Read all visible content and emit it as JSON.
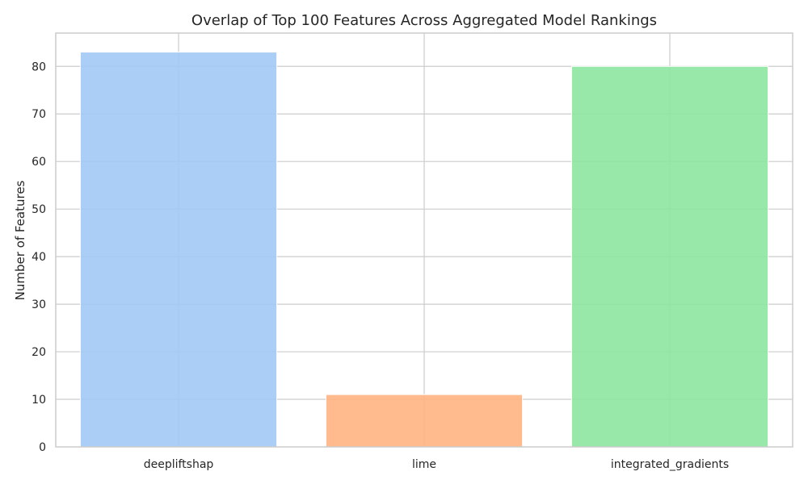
{
  "chart_data": {
    "type": "bar",
    "title": "Overlap of Top 100 Features Across Aggregated Model Rankings",
    "xlabel": "",
    "ylabel": "Number of Features",
    "categories": [
      "deepliftshap",
      "lime",
      "integrated_gradients"
    ],
    "values": [
      83,
      11,
      80
    ],
    "colors": [
      "#a1c9f4",
      "#ffb482",
      "#8de5a1"
    ],
    "ylim": [
      0,
      87
    ],
    "yticks": [
      0,
      10,
      20,
      30,
      40,
      50,
      60,
      70,
      80
    ],
    "grid": true,
    "legend": "none"
  }
}
